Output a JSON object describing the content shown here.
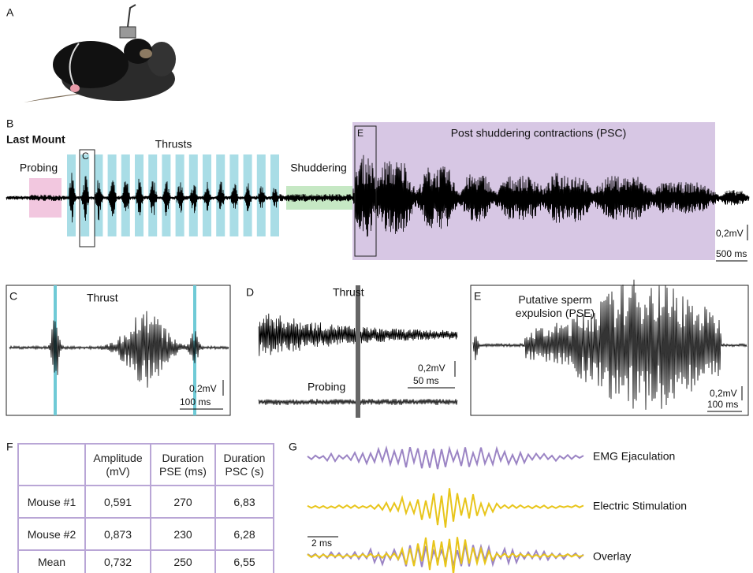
{
  "panel_labels": [
    "A",
    "B",
    "C",
    "D",
    "E",
    "F",
    "G"
  ],
  "panel_b": {
    "title": "Last Mount",
    "probing": "Probing",
    "thrusts": "Thrusts",
    "shuddering": "Shuddering",
    "psc": "Post shuddering contractions (PSC)",
    "box_c": "C",
    "box_e": "E",
    "scale_amplitude": "0,2mV",
    "scale_time": "500 ms"
  },
  "panel_c": {
    "label": "Thrust",
    "scale_amplitude": "0,2mV",
    "scale_time": "100 ms"
  },
  "panel_d": {
    "top": "Thrust",
    "bottom": "Probing",
    "scale_amplitude": "0,2mV",
    "scale_time": "50 ms"
  },
  "panel_e": {
    "label": "Putative sperm expulsion (PSE)",
    "scale_amplitude": "0,2mV",
    "scale_time": "100 ms"
  },
  "table": {
    "header": [
      "Amplitude (mV)",
      "Duration PSE (ms)",
      "Duration PSC (s)"
    ],
    "rows": [
      [
        "Mouse #1",
        "0,591",
        "270",
        "6,83"
      ],
      [
        "Mouse #2",
        "0,873",
        "230",
        "6,28"
      ],
      [
        "Mean",
        "0,732",
        "250",
        "6,55"
      ]
    ]
  },
  "panel_g": {
    "traces": [
      "EMG Ejaculation",
      "Electric Stimulation",
      "Overlay"
    ],
    "scale_time": "2 ms"
  }
}
